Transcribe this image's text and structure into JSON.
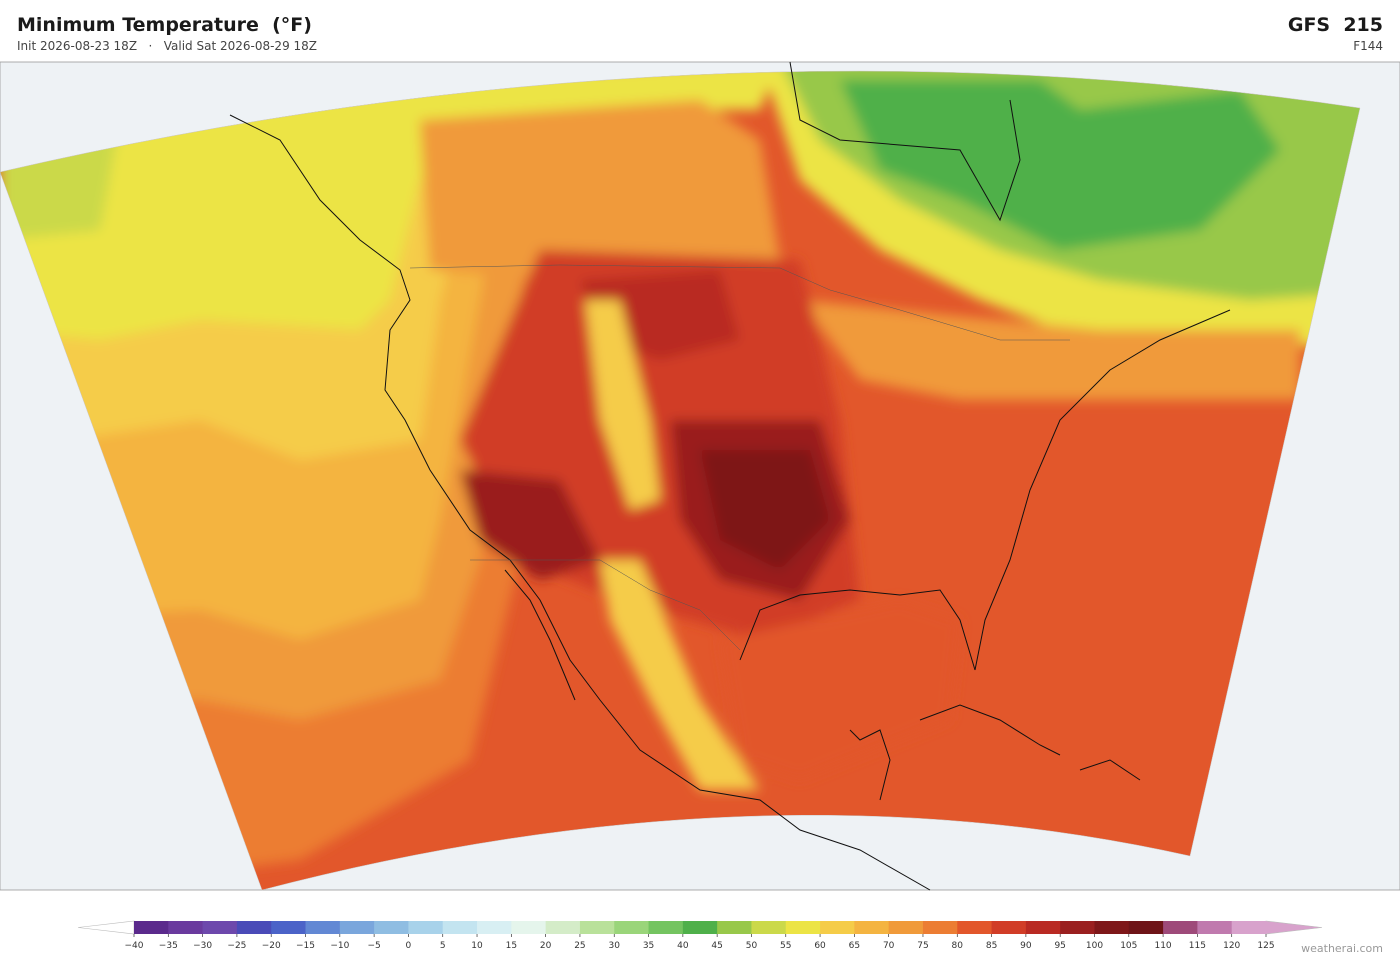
{
  "header": {
    "title": "Minimum Temperature  (°F)",
    "subtitle": "Init 2026-08-23 18Z   ·   Valid Sat 2026-08-29 18Z",
    "model": "GFS  215",
    "forecast_hour": "F144"
  },
  "colorbar": {
    "ticks": [
      {
        "value": -40,
        "label": "−40"
      },
      {
        "value": -35,
        "label": "−35"
      },
      {
        "value": -30,
        "label": "−30"
      },
      {
        "value": -25,
        "label": "−25"
      },
      {
        "value": -20,
        "label": "−20"
      },
      {
        "value": -15,
        "label": "−15"
      },
      {
        "value": -10,
        "label": "−10"
      },
      {
        "value": -5,
        "label": "−5"
      },
      0,
      5,
      10,
      15,
      20,
      25,
      30,
      35,
      40,
      45,
      50,
      55,
      60,
      65,
      70,
      75,
      80,
      85,
      90,
      95,
      100,
      105,
      110,
      115,
      120,
      125
    ],
    "colors": [
      "#5b2a8c",
      "#6a3a9e",
      "#6d48ac",
      "#4a4bb8",
      "#4b63c8",
      "#6288d4",
      "#7aa6dc",
      "#8fbde2",
      "#a8d2ea",
      "#c3e4f0",
      "#d8eff3",
      "#e5f5ec",
      "#d4ecc8",
      "#b9e19a",
      "#9ad57a",
      "#74c460",
      "#4fb04a",
      "#98c84a",
      "#cbd94a",
      "#ece445",
      "#f5cc48",
      "#f4b441",
      "#f09a3a",
      "#ec7d33",
      "#e2572b",
      "#d13d27",
      "#b92a23",
      "#9a1f1f",
      "#7e1719",
      "#6e1418",
      "#9e4a7a",
      "#c07aae",
      "#d8a2cc"
    ],
    "under_color": "#ffffff",
    "over_color": "#d8a2cc"
  },
  "credit": "weatherai.com"
}
